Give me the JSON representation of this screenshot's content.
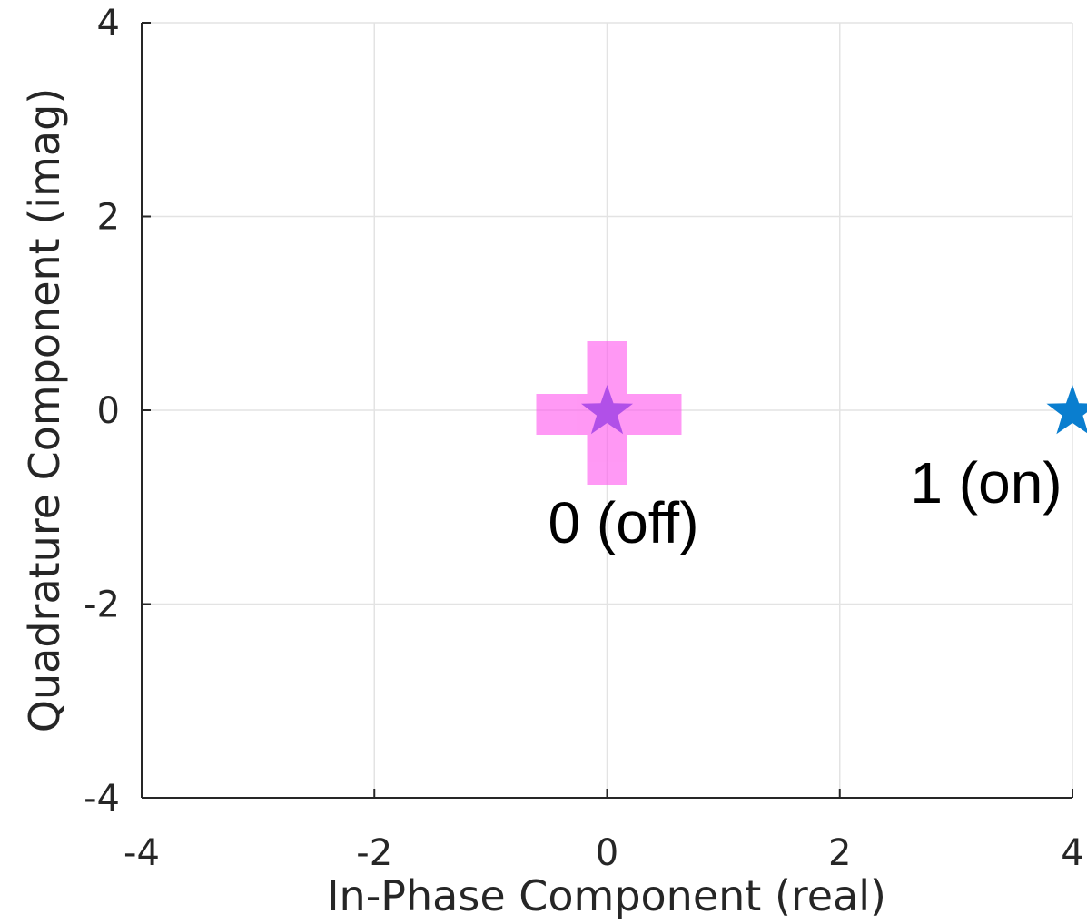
{
  "chart_data": {
    "type": "scatter",
    "title": "",
    "xlabel": "In-Phase Component (real)",
    "ylabel": "Quadrature Component (imag)",
    "xlim": [
      -4,
      4
    ],
    "ylim": [
      -4,
      4
    ],
    "xticks": [
      -4,
      -2,
      0,
      2,
      4
    ],
    "yticks": [
      -4,
      -2,
      0,
      2,
      4
    ],
    "xtick_labels": [
      "-4",
      "-2",
      "0",
      "2",
      "4"
    ],
    "ytick_labels": [
      "-4",
      "-2",
      "0",
      "2",
      "4"
    ],
    "grid": true,
    "points": [
      {
        "x": 0,
        "y": 0,
        "marker": "star",
        "color": "#b150e8",
        "label": "0 (off)"
      },
      {
        "x": 4,
        "y": 0,
        "marker": "star",
        "color": "#0a7ecf",
        "label": "1 (on)"
      }
    ],
    "cross_marker": {
      "x": 0,
      "y": 0,
      "color": "#ff55ee",
      "opacity": 0.6
    }
  }
}
